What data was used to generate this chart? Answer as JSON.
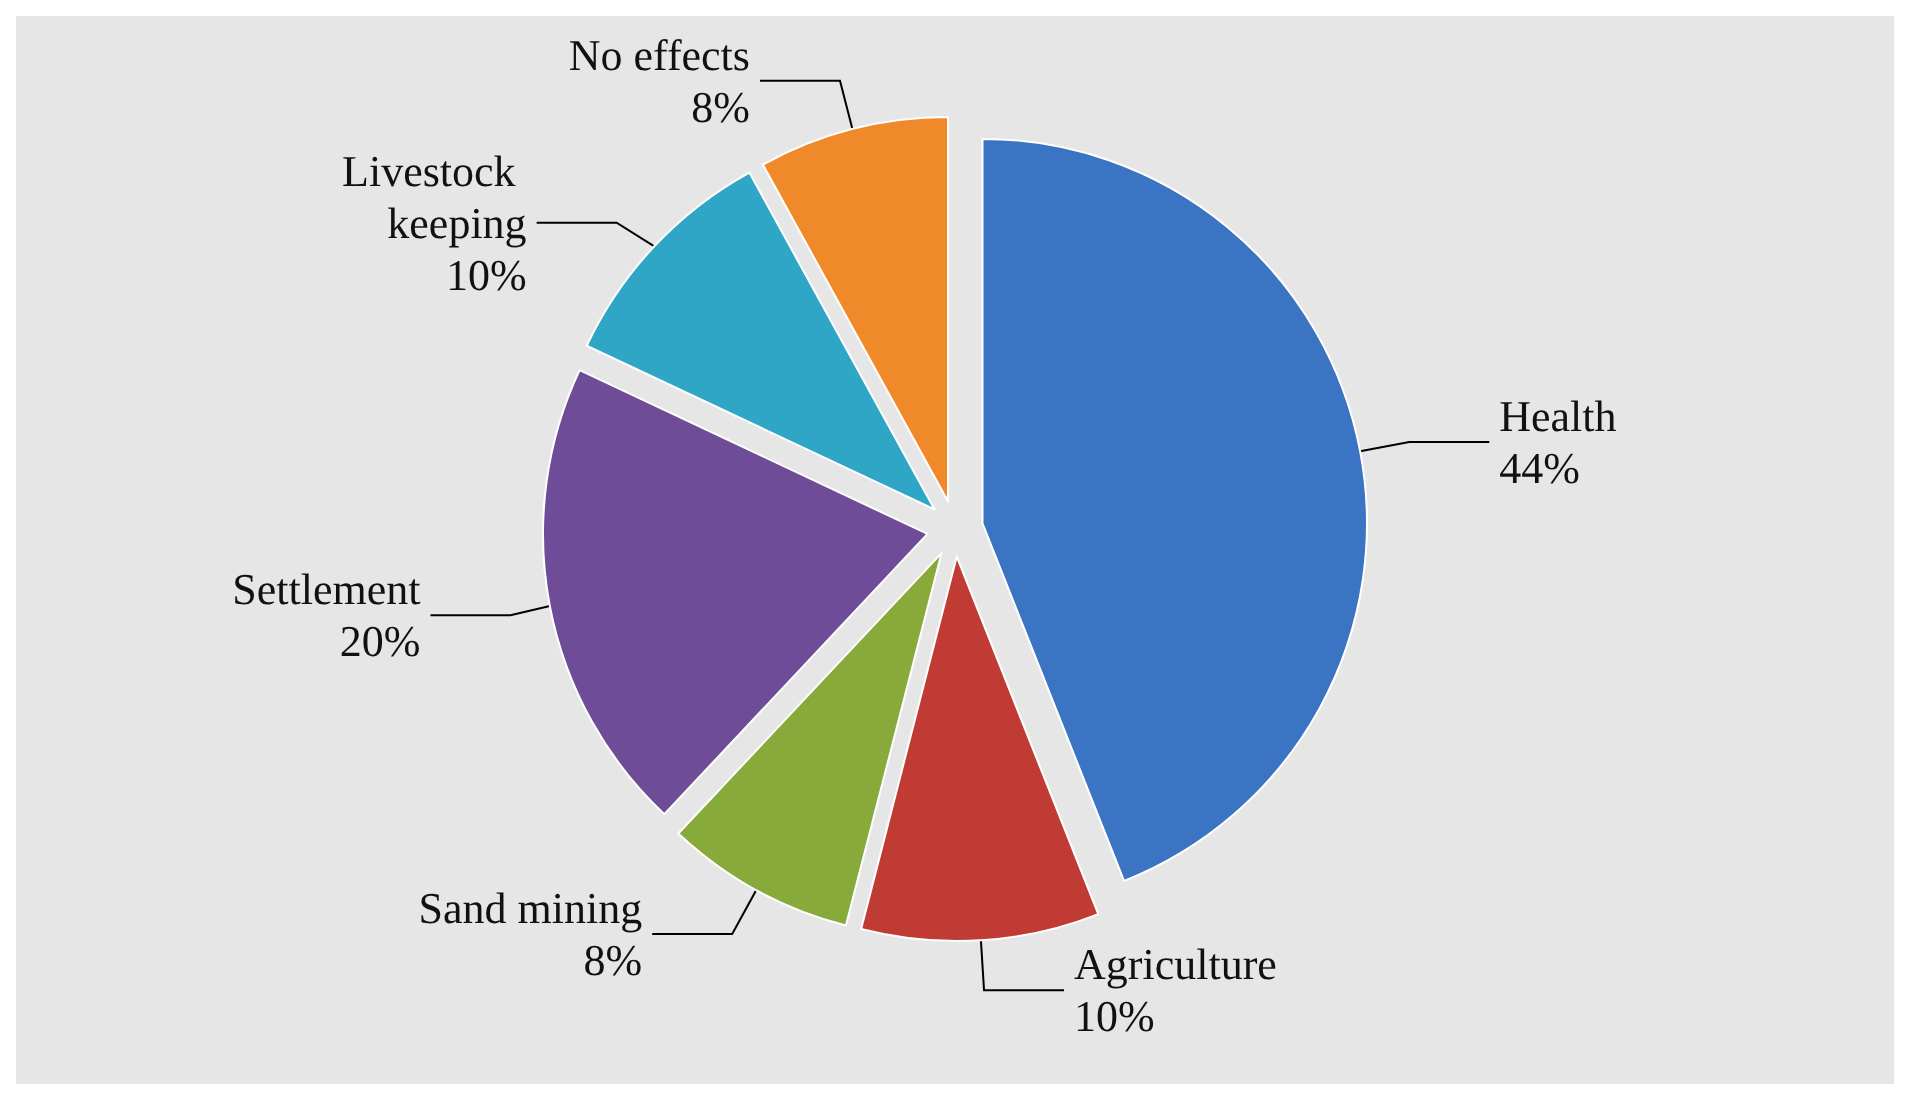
{
  "chart_data": {
    "type": "pie",
    "categories": [
      "Health",
      "Agriculture",
      "Sand mining",
      "Settlement",
      "Livestock keeping",
      "No effects"
    ],
    "values": [
      44,
      10,
      8,
      20,
      10,
      8
    ],
    "colors": [
      "#3b74c2",
      "#c03b34",
      "#87aa3a",
      "#6e4c98",
      "#2fa6c6",
      "#f0892a"
    ],
    "value_labels": [
      "44%",
      "10%",
      "8%",
      "20%",
      "10%",
      "8%"
    ],
    "legend": false
  }
}
